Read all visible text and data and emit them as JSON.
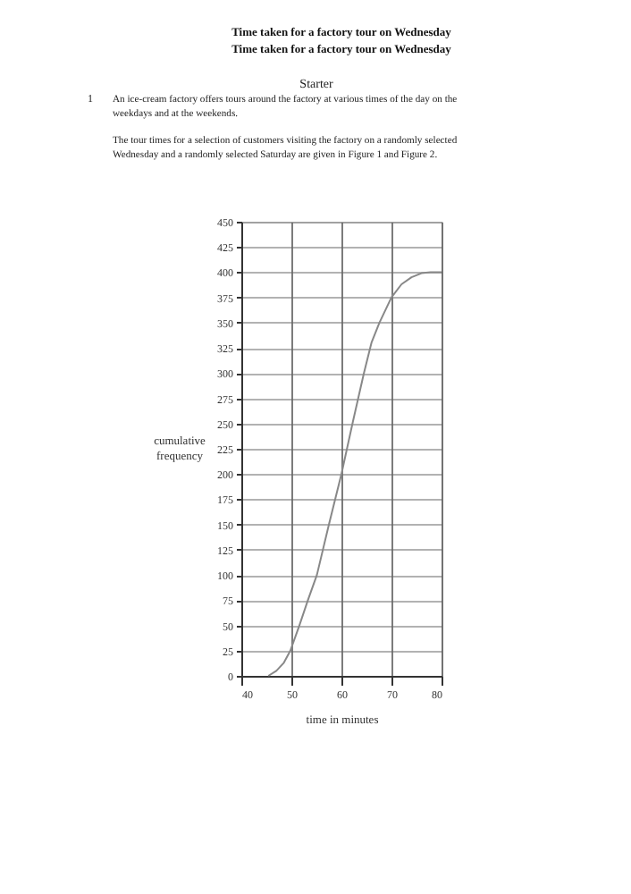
{
  "chart_data": {
    "type": "line",
    "title": "Time taken for a factory tour on Wednesday",
    "subtitle": "Time taken for a factory tour on Wednesday",
    "xlabel": "time in minutes",
    "ylabel": "cumulative frequency",
    "annotations": [
      "Starter",
      "1",
      "An ice-cream factory offers tours around the factory at various times of the day on the weekdays and at the weekends.",
      "The tour times for a selection of customers visiting the factory on a randomly selected Wednesday and a randomly selected Saturday are given in Figure 1 and Figure 2."
    ],
    "x": [
      45.4,
      47,
      48.5,
      49.8,
      51.6,
      53.3,
      55.1,
      57.5,
      60,
      62.3,
      64.5,
      66,
      67.6,
      70,
      72,
      74,
      76,
      77.8,
      80
    ],
    "series": [
      {
        "color": "#888888",
        "values": [
          0,
          5,
          13,
          25,
          50,
          75,
          100,
          150,
          200,
          252,
          300,
          330,
          350,
          375,
          388,
          395,
          399,
          400,
          400
        ]
      }
    ],
    "xlim": [
      40,
      80
    ],
    "xticks": [
      40,
      50,
      60,
      70,
      80
    ],
    "ylim": [
      0,
      450
    ],
    "yticks": [
      0,
      25,
      50,
      75,
      100,
      125,
      150,
      175,
      200,
      225,
      250,
      275,
      300,
      325,
      350,
      375,
      400,
      425,
      450
    ],
    "grid": true,
    "marker": "none",
    "line_style": "solid"
  }
}
